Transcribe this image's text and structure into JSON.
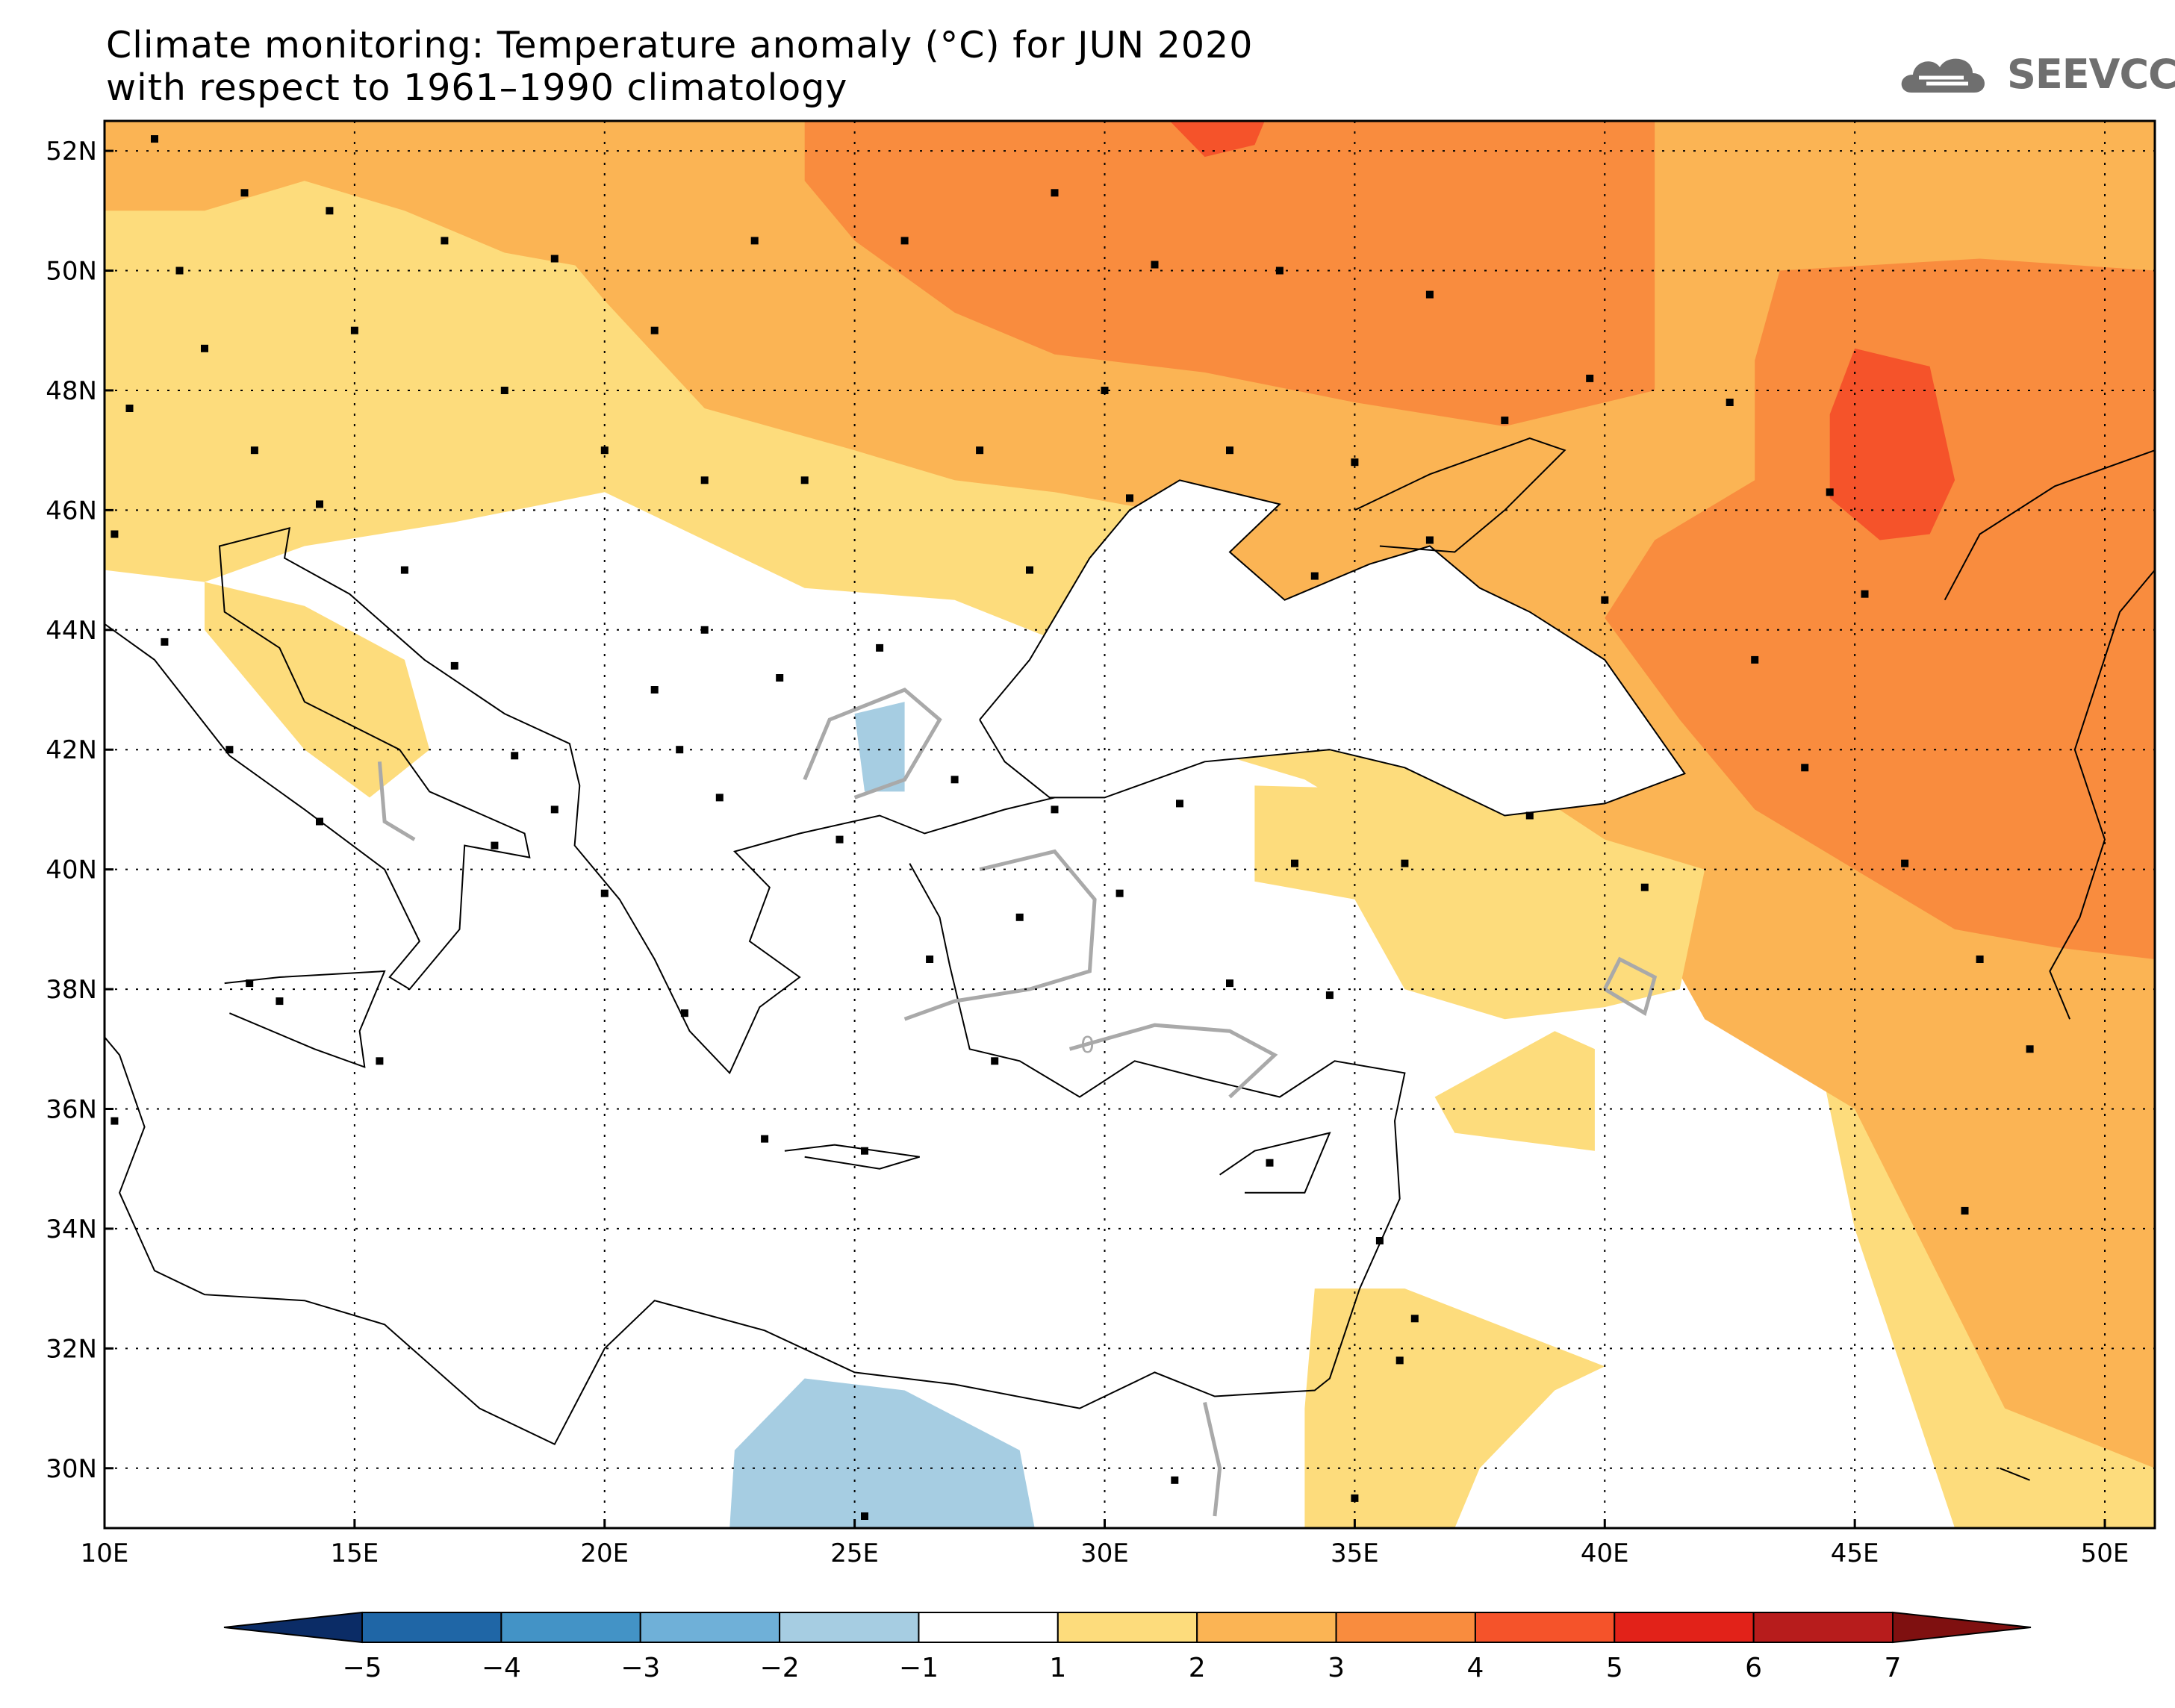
{
  "title": {
    "line1": "Climate monitoring: Temperature anomaly (°C) for JUN 2020",
    "line2": "with respect to 1961–1990 climatology"
  },
  "logo": {
    "text": "SEEVCCC",
    "icon": "cloud-icon"
  },
  "map": {
    "lon_range": [
      10,
      51
    ],
    "lat_range": [
      29,
      52.5
    ],
    "lon_ticks": [
      "10E",
      "15E",
      "20E",
      "25E",
      "30E",
      "35E",
      "40E",
      "45E",
      "50E"
    ],
    "lat_ticks": [
      "30N",
      "32N",
      "34N",
      "36N",
      "38N",
      "40N",
      "42N",
      "44N",
      "46N",
      "48N",
      "50N",
      "52N"
    ],
    "grid": true,
    "contour_label": "0"
  },
  "colorbar": {
    "labels": [
      "-5",
      "-4",
      "-3",
      "-2",
      "-1",
      "1",
      "2",
      "3",
      "4",
      "5",
      "6",
      "7"
    ],
    "colors": [
      "#0b2c66",
      "#1f66a6",
      "#4393c6",
      "#6fb0d8",
      "#a6cde2",
      "#ffffff",
      "#fddc7c",
      "#fbb454",
      "#f98c3e",
      "#f5532a",
      "#e22219",
      "#b71c1c",
      "#7f1010"
    ]
  }
}
